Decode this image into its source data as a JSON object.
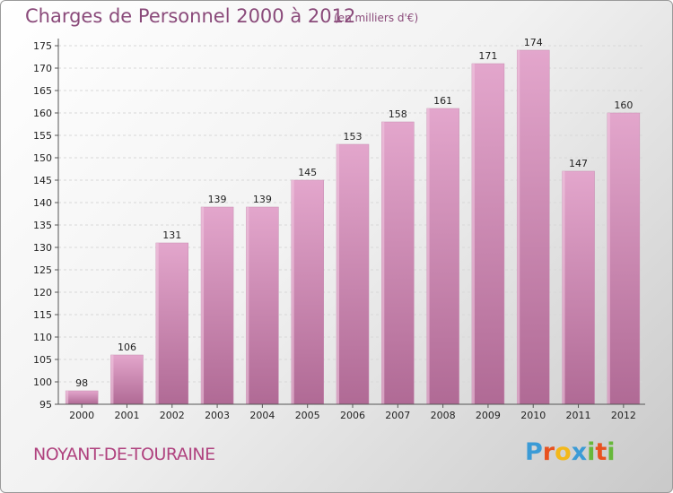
{
  "header": {
    "title": "Charges de Personnel 2000 à 2012",
    "subtitle": "(en milliers d'€)"
  },
  "footer": {
    "commune": "NOYANT-DE-TOURAINE",
    "logo_letters": [
      "P",
      "r",
      "o",
      "x",
      "i",
      "t",
      "i"
    ],
    "logo_colors": [
      "#3b9bd6",
      "#e8521f",
      "#f3b81a",
      "#3b9bd6",
      "#67b83a",
      "#e8521f",
      "#67b83a"
    ]
  },
  "colors": {
    "bar_light": "#e3a6cc",
    "bar_dark": "#b06a95",
    "axis": "#555555",
    "grid": "#d8d8d8",
    "text": "#222222"
  },
  "chart_data": {
    "type": "bar",
    "categories": [
      "2000",
      "2001",
      "2002",
      "2003",
      "2004",
      "2005",
      "2006",
      "2007",
      "2008",
      "2009",
      "2010",
      "2011",
      "2012"
    ],
    "values": [
      98,
      106,
      131,
      139,
      139,
      145,
      153,
      158,
      161,
      171,
      174,
      147,
      160
    ],
    "ylim": [
      95,
      175
    ],
    "yticks": [
      95,
      100,
      105,
      110,
      115,
      120,
      125,
      130,
      135,
      140,
      145,
      150,
      155,
      160,
      165,
      170,
      175
    ],
    "grid": true,
    "title": "Charges de Personnel 2000 à 2012",
    "xlabel": "",
    "ylabel": ""
  }
}
